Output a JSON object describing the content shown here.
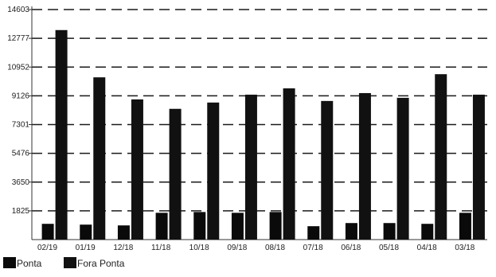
{
  "chart_data": {
    "type": "bar",
    "title": "",
    "xlabel": "",
    "ylabel": "",
    "categories": [
      "02/19",
      "01/19",
      "12/18",
      "11/18",
      "10/18",
      "09/18",
      "08/18",
      "07/18",
      "06/18",
      "05/18",
      "04/18",
      "03/18"
    ],
    "series": [
      {
        "name": "Ponta",
        "color": "#0a0a0a",
        "values": [
          1000,
          950,
          900,
          1700,
          1750,
          1700,
          1750,
          850,
          1050,
          1050,
          1000,
          1700
        ]
      },
      {
        "name": "Fora Ponta",
        "color": "#111111",
        "values": [
          13300,
          10300,
          8900,
          8300,
          8700,
          9200,
          9600,
          8800,
          9300,
          9000,
          10500,
          9200
        ]
      }
    ],
    "y_ticks": [
      "1825",
      "3650",
      "5476",
      "7301",
      "9126",
      "10952",
      "12777",
      "14603"
    ],
    "ylim": [
      0,
      14603
    ],
    "grid": "dashed horizontal",
    "legend": "bottom-left"
  }
}
